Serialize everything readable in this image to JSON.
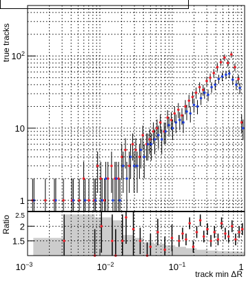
{
  "chart_data": [
    {
      "panel": "main",
      "type": "scatter",
      "xlabel": "track min ΔR",
      "ylabel": "true tracks",
      "xscale": "log",
      "yscale": "log",
      "xlim": [
        0.001,
        1
      ],
      "ylim": [
        0.7,
        500
      ],
      "grid": true,
      "x_ticks": [
        "10^-3",
        "10^-2",
        "10^-1",
        "1"
      ],
      "y_ticks": [
        "1",
        "10",
        "10^2"
      ],
      "series": [
        {
          "color": "#e8202a",
          "x": [
            0.0012,
            0.0018,
            0.0024,
            0.0032,
            0.0042,
            0.0053,
            0.0061,
            0.0072,
            0.0085,
            0.0095,
            0.0105,
            0.0118,
            0.0132,
            0.0148,
            0.0165,
            0.0185,
            0.0205,
            0.023,
            0.026,
            0.029,
            0.032,
            0.036,
            0.04,
            0.045,
            0.05,
            0.056,
            0.063,
            0.07,
            0.079,
            0.088,
            0.099,
            0.11,
            0.124,
            0.139,
            0.155,
            0.174,
            0.195,
            0.218,
            0.244,
            0.273,
            0.306,
            0.342,
            0.383,
            0.429,
            0.48,
            0.54,
            0.6,
            0.67,
            0.75,
            0.84,
            0.93
          ],
          "y": [
            1,
            1,
            1,
            1,
            1,
            1,
            2,
            1,
            1,
            3,
            2,
            1,
            2,
            3,
            2,
            2,
            4,
            5,
            3,
            6,
            5,
            4,
            8,
            6,
            7,
            9,
            10,
            12,
            9,
            14,
            13,
            16,
            18,
            15,
            20,
            24,
            27,
            31,
            37,
            34,
            45,
            50,
            58,
            70,
            82,
            95,
            80,
            105,
            70,
            48,
            12
          ]
        },
        {
          "color": "#1f3fd6",
          "x": [
            0.0012,
            0.0024,
            0.0042,
            0.0061,
            0.0085,
            0.0105,
            0.0118,
            0.0148,
            0.0165,
            0.0185,
            0.0205,
            0.023,
            0.026,
            0.029,
            0.032,
            0.036,
            0.04,
            0.045,
            0.05,
            0.056,
            0.063,
            0.07,
            0.079,
            0.088,
            0.099,
            0.11,
            0.124,
            0.139,
            0.155,
            0.174,
            0.195,
            0.218,
            0.244,
            0.273,
            0.306,
            0.342,
            0.383,
            0.429,
            0.48,
            0.54,
            0.6,
            0.67,
            0.75,
            0.84,
            0.93
          ],
          "y": [
            1,
            1,
            1,
            1,
            1,
            1,
            2,
            1,
            2,
            1,
            3,
            2,
            4,
            3,
            3,
            5,
            4,
            6,
            6,
            7,
            8,
            7,
            9,
            11,
            10,
            12,
            13,
            12,
            17,
            16,
            21,
            20,
            26,
            31,
            29,
            37,
            40,
            48,
            52,
            55,
            57,
            47,
            40,
            36,
            10
          ]
        }
      ]
    },
    {
      "panel": "ratio",
      "type": "scatter",
      "ylabel": "Ratio",
      "xscale": "log",
      "xlim": [
        0.001,
        1
      ],
      "ylim": [
        1,
        2.5
      ],
      "grid": true,
      "y_ticks": [
        "1",
        "1.5",
        "2",
        "2.5"
      ],
      "series": [
        {
          "color": "#e8202a",
          "x": [
            0.0032,
            0.0085,
            0.0105,
            0.0148,
            0.0165,
            0.0205,
            0.023,
            0.029,
            0.036,
            0.045,
            0.05,
            0.063,
            0.079,
            0.099,
            0.124,
            0.139,
            0.155,
            0.174,
            0.195,
            0.218,
            0.244,
            0.273,
            0.306,
            0.342,
            0.383,
            0.429,
            0.48,
            0.54,
            0.6,
            0.67,
            0.75,
            0.84,
            0.93
          ],
          "y": [
            1.5,
            1.0,
            2.0,
            1.5,
            1.0,
            1.5,
            2.3,
            1.9,
            1.5,
            1.0,
            1.3,
            1.8,
            1.2,
            1.6,
            1.5,
            1.75,
            1.55,
            2.1,
            1.3,
            1.8,
            2.2,
            1.65,
            1.9,
            1.5,
            1.8,
            1.55,
            2.1,
            1.75,
            1.65,
            2.0,
            1.55,
            1.8,
            1.9
          ]
        }
      ],
      "band": {
        "color": "#cccccc",
        "x": [
          0.0012,
          0.0032,
          0.0085,
          0.0148,
          0.0205,
          0.029,
          0.04,
          0.056,
          0.079,
          0.11,
          0.155,
          0.218,
          0.306,
          0.429,
          0.6,
          0.84,
          1
        ],
        "y_half_width": [
          0.6,
          1.4,
          1.3,
          1.2,
          0.7,
          0.6,
          0.45,
          0.4,
          0.35,
          0.3,
          0.25,
          0.2,
          0.17,
          0.15,
          0.14,
          0.13,
          0.13
        ]
      }
    }
  ]
}
